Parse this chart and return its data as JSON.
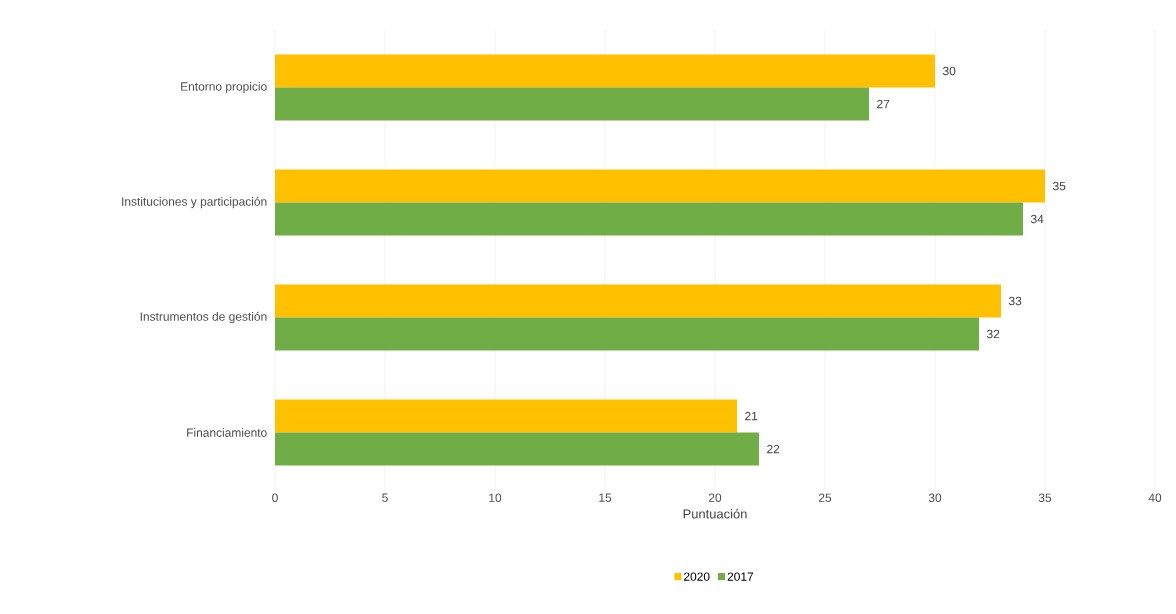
{
  "chart_data": {
    "type": "bar",
    "orientation": "horizontal",
    "xlabel": "Puntuación",
    "categories": [
      "Entorno propicio",
      "Instituciones y participación",
      "Instrumentos de gestión",
      "Financiamiento"
    ],
    "series": [
      {
        "name": "2020",
        "color": "#ffc000",
        "values": [
          30,
          35,
          33,
          21
        ]
      },
      {
        "name": "2017",
        "color": "#70ad47",
        "values": [
          27,
          34,
          32,
          22
        ]
      }
    ],
    "xlim": [
      0,
      40
    ],
    "xticks": [
      0,
      5,
      10,
      15,
      20,
      25,
      30,
      35,
      40
    ],
    "grid": "x",
    "legend": "bottom",
    "data_labels": true
  }
}
